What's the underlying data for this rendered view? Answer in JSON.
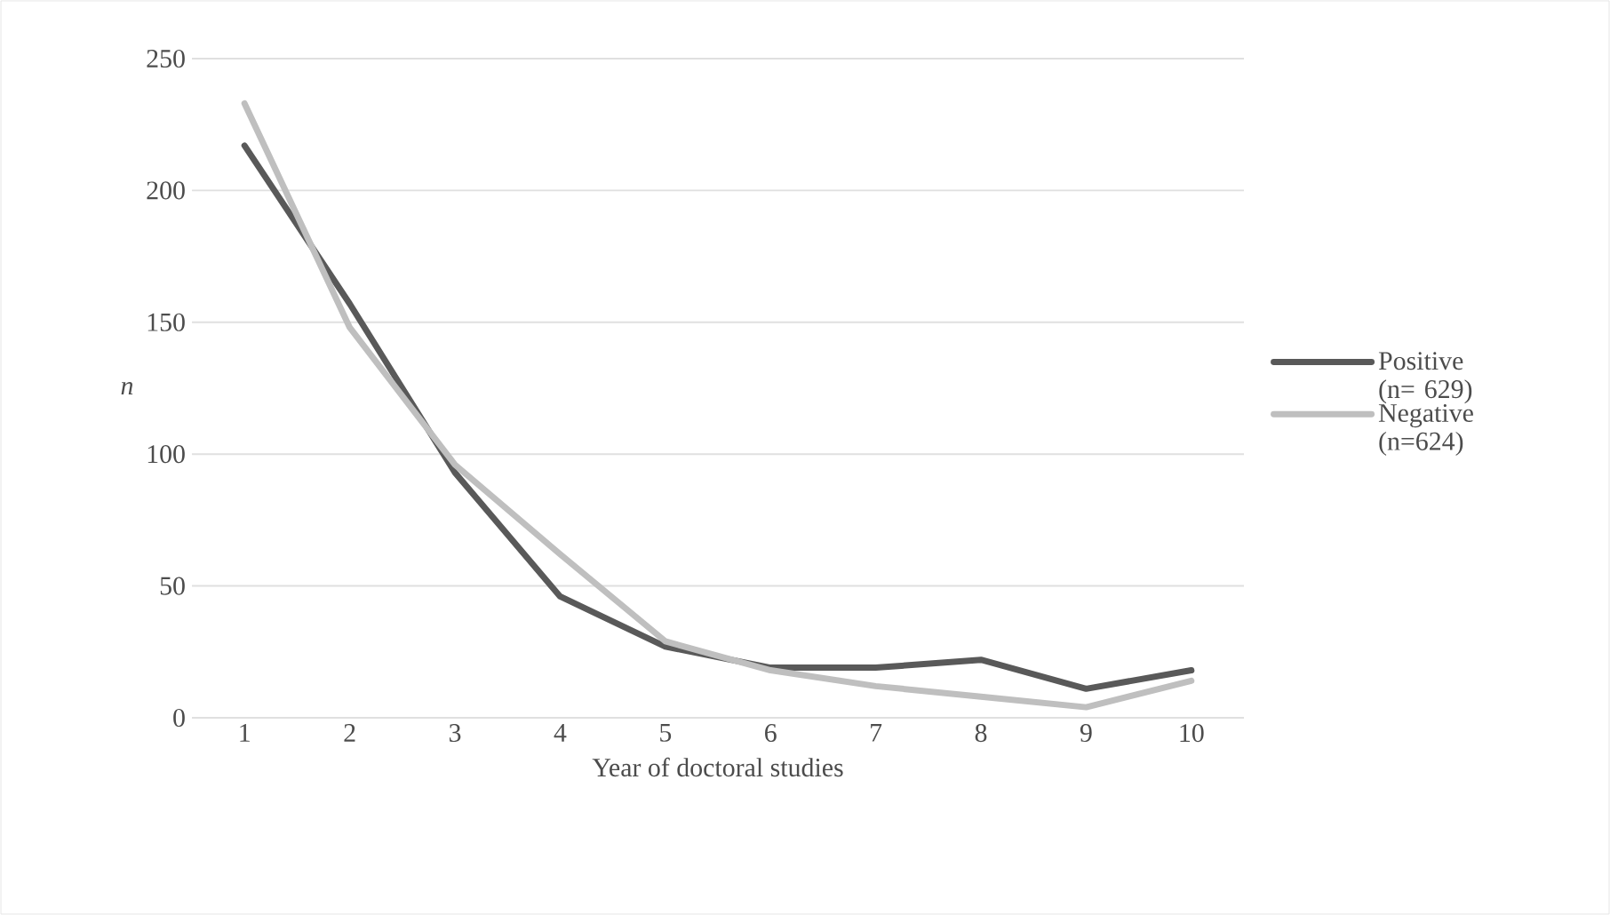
{
  "chart_data": {
    "type": "line",
    "xlabel": "Year of doctoral studies",
    "ylabel": "n",
    "categories": [
      "1",
      "2",
      "3",
      "4",
      "5",
      "6",
      "7",
      "8",
      "9",
      "10"
    ],
    "series": [
      {
        "name": "Positive (n= 629)",
        "color": "#595959",
        "values": [
          217,
          157,
          93,
          46,
          27,
          19,
          19,
          22,
          11,
          18
        ]
      },
      {
        "name": "Negative (n=624)",
        "color": "#bfbfbf",
        "values": [
          233,
          148,
          96,
          62,
          29,
          18,
          12,
          8,
          4,
          14
        ]
      }
    ],
    "ylim": [
      0,
      250
    ],
    "yticks": [
      0,
      50,
      100,
      150,
      200,
      250
    ],
    "grid": "y",
    "legend": "right",
    "marker": "none",
    "line_style": "solid"
  }
}
